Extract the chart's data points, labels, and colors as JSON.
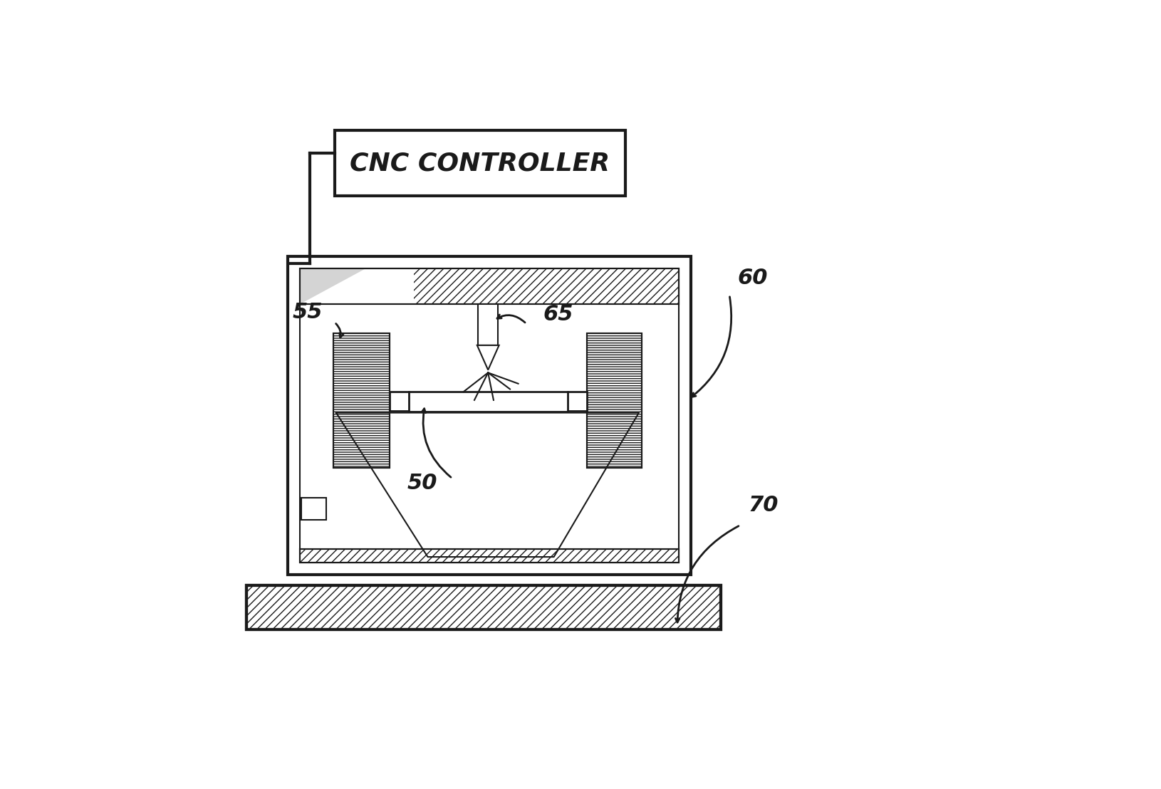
{
  "bg_color": "#ffffff",
  "line_color": "#1a1a1a",
  "title_text": "CNC CONTROLLER",
  "label_55": "55",
  "label_65": "65",
  "label_50": "50",
  "label_60": "60",
  "label_70": "70",
  "lw_thick": 3.0,
  "lw_med": 2.0,
  "lw_thin": 1.5
}
